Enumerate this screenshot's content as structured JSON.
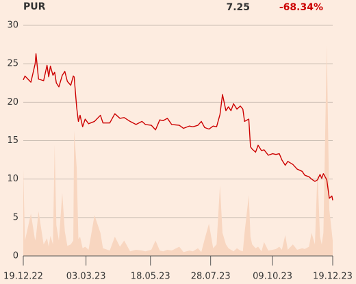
{
  "chart_data": {
    "type": "line",
    "symbol": "PUR",
    "last": 7.25,
    "change": {
      "value": -68.34,
      "label": "-68.34%"
    },
    "x": [
      "2022-12-19",
      "2022-12-21",
      "2022-12-28",
      "2023-01-02",
      "2023-01-03",
      "2023-01-06",
      "2023-01-12",
      "2023-01-16",
      "2023-01-18",
      "2023-01-20",
      "2023-01-23",
      "2023-01-25",
      "2023-01-27",
      "2023-01-30",
      "2023-02-03",
      "2023-02-06",
      "2023-02-09",
      "2023-02-13",
      "2023-02-16",
      "2023-02-17",
      "2023-02-20",
      "2023-02-22",
      "2023-02-24",
      "2023-02-27",
      "2023-03-02",
      "2023-03-06",
      "2023-03-13",
      "2023-03-20",
      "2023-03-23",
      "2023-03-31",
      "2023-04-06",
      "2023-04-12",
      "2023-04-17",
      "2023-04-24",
      "2023-05-01",
      "2023-05-08",
      "2023-05-12",
      "2023-05-19",
      "2023-05-24",
      "2023-05-29",
      "2023-06-02",
      "2023-06-07",
      "2023-06-12",
      "2023-06-21",
      "2023-06-26",
      "2023-07-03",
      "2023-07-07",
      "2023-07-13",
      "2023-07-17",
      "2023-07-21",
      "2023-07-26",
      "2023-07-31",
      "2023-08-04",
      "2023-08-08",
      "2023-08-11",
      "2023-08-15",
      "2023-08-18",
      "2023-08-21",
      "2023-08-24",
      "2023-08-28",
      "2023-09-01",
      "2023-09-04",
      "2023-09-06",
      "2023-09-11",
      "2023-09-13",
      "2023-09-15",
      "2023-09-19",
      "2023-09-22",
      "2023-09-26",
      "2023-09-29",
      "2023-10-04",
      "2023-10-09",
      "2023-10-13",
      "2023-10-17",
      "2023-10-20",
      "2023-10-24",
      "2023-10-27",
      "2023-11-02",
      "2023-11-07",
      "2023-11-13",
      "2023-11-16",
      "2023-11-21",
      "2023-11-24",
      "2023-11-28",
      "2023-12-01",
      "2023-12-04",
      "2023-12-06",
      "2023-12-08",
      "2023-12-12",
      "2023-12-15",
      "2023-12-18",
      "2023-12-19"
    ],
    "series": [
      {
        "type": "line",
        "color": "#cc0000",
        "values": [
          22.9,
          23.4,
          22.6,
          25,
          26.3,
          23,
          22.8,
          24.8,
          23.3,
          24.7,
          23.5,
          23.9,
          22.5,
          22,
          23.5,
          24,
          22.7,
          22.2,
          23.4,
          23.3,
          19.3,
          17.5,
          18.3,
          16.8,
          17.8,
          17.2,
          17.5,
          18.3,
          17.3,
          17.3,
          18.5,
          17.9,
          18,
          17.5,
          17.1,
          17.5,
          17.1,
          17,
          16.4,
          17.7,
          17.6,
          17.9,
          17.1,
          17,
          16.6,
          16.9,
          16.8,
          17,
          17.5,
          16.7,
          16.5,
          16.9,
          16.8,
          18.4,
          21,
          18.9,
          19.4,
          18.9,
          19.8,
          19.1,
          19.5,
          19.1,
          17.5,
          17.8,
          14.2,
          13.9,
          13.5,
          14.4,
          13.7,
          13.8,
          13.1,
          13.3,
          13.2,
          13.3,
          12.5,
          11.8,
          12.3,
          11.9,
          11.3,
          11,
          10.5,
          10.3,
          10,
          9.7,
          9.9,
          10.6,
          10.1,
          10.7,
          9.9,
          7.5,
          7.8,
          7.25
        ]
      },
      {
        "type": "area",
        "color": "#f8d6c0",
        "values": [
          11.2,
          2,
          5.5,
          2,
          2.5,
          5.8,
          1.5,
          2.3,
          1.2,
          2.6,
          1.5,
          14.5,
          4,
          2,
          8.2,
          3.2,
          1.3,
          1.5,
          2,
          16.3,
          11.5,
          2.2,
          2.5,
          1,
          1.2,
          0.8,
          5.3,
          3,
          1,
          0.7,
          2.5,
          1.2,
          2,
          0.6,
          0.8,
          0.7,
          0.6,
          0.8,
          2,
          0.7,
          0.6,
          0.8,
          0.7,
          1.2,
          0.5,
          0.7,
          0.6,
          1,
          0.5,
          2.2,
          4.2,
          1,
          1.5,
          9.2,
          3,
          1.5,
          1,
          0.8,
          0.6,
          1,
          0.7,
          0.6,
          3,
          7.9,
          2.5,
          1.5,
          1,
          1.2,
          0.6,
          1.8,
          0.7,
          0.8,
          0.9,
          1.2,
          0.8,
          2.7,
          0.8,
          1.5,
          0.8,
          1,
          0.9,
          1.2,
          3,
          1.5,
          11,
          2.5,
          1.5,
          3,
          27.5,
          6,
          3,
          2
        ]
      }
    ],
    "xlim": [
      "2022-12-19",
      "2023-12-19"
    ],
    "xticks": [
      {
        "value": "2022-12-19",
        "label": "19.12.22"
      },
      {
        "value": "2023-03-03",
        "label": "03.03.23"
      },
      {
        "value": "2023-05-18",
        "label": "18.05.23"
      },
      {
        "value": "2023-07-28",
        "label": "28.07.23"
      },
      {
        "value": "2023-10-09",
        "label": "09.10.23"
      },
      {
        "value": "2023-12-19",
        "label": "19.12.23"
      }
    ],
    "ylim": [
      0,
      30
    ],
    "yticks": [
      0,
      5,
      10,
      15,
      20,
      25,
      30
    ],
    "grid": true
  }
}
